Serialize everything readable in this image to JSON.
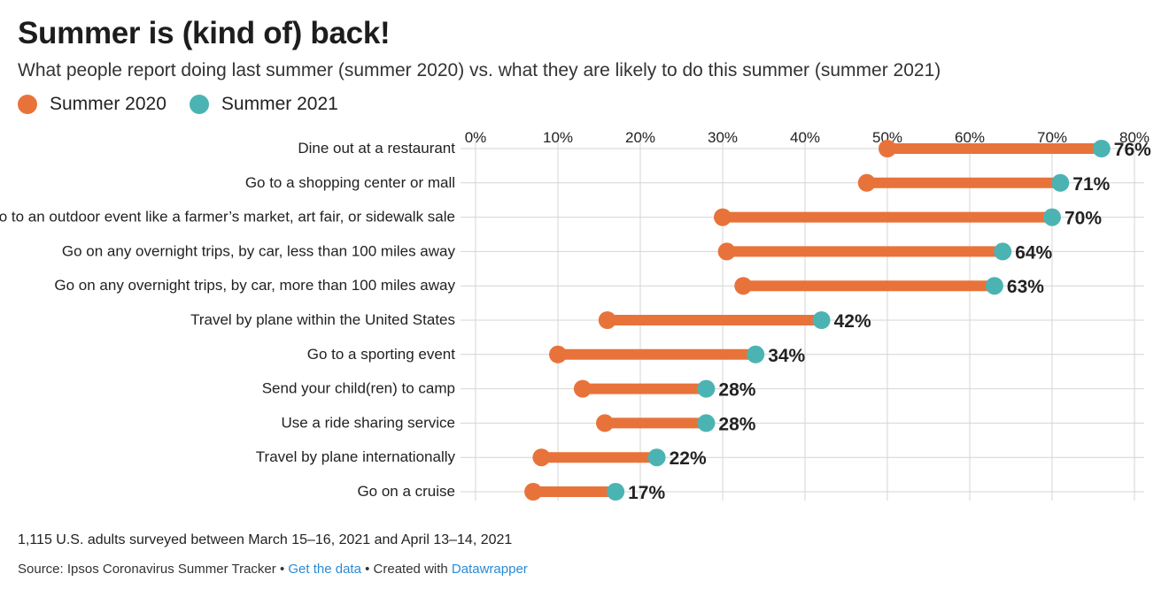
{
  "title": "Summer is (kind of) back!",
  "subtitle": "What people report doing last summer (summer 2020) vs. what they are likely to do this summer (summer 2021)",
  "legend": [
    {
      "label": "Summer 2020",
      "color": "#e8733a"
    },
    {
      "label": "Summer 2021",
      "color": "#4cb3b3"
    }
  ],
  "note": "1,115 U.S. adults surveyed between March 15–16, 2021 and April 13–14, 2021",
  "footer": {
    "source": "Source: Ipsos Coronavirus Summer Tracker",
    "sep1": " • ",
    "get_data": "Get the data",
    "sep2": " • ",
    "created_with": "Created with ",
    "datawrapper": "Datawrapper"
  },
  "chart_data": {
    "type": "dot-range",
    "xlim": [
      0,
      80
    ],
    "xticks": [
      0,
      10,
      20,
      30,
      40,
      50,
      60,
      70,
      80
    ],
    "tick_suffix": "%",
    "series": [
      {
        "name": "Summer 2020",
        "color": "#e8733a"
      },
      {
        "name": "Summer 2021",
        "color": "#4cb3b3"
      }
    ],
    "categories": [
      "Dine out at a restaurant",
      "Go to a shopping center or mall",
      "Go to an outdoor event like a farmer’s market, art fair, or sidewalk sale",
      "Go on any overnight trips, by car, less than 100 miles away",
      "Go on any overnight trips, by car, more than 100 miles away",
      "Travel by plane within the United States",
      "Go to a sporting event",
      "Send your child(ren) to camp",
      "Use a ride sharing service",
      "Travel by plane internationally",
      "Go on a cruise"
    ],
    "summer_2020": [
      50,
      47.5,
      30,
      30.5,
      32.5,
      16,
      10,
      13,
      15.7,
      8,
      7
    ],
    "summer_2021": [
      76,
      71,
      70,
      64,
      63,
      42,
      34,
      28,
      28,
      22,
      17
    ],
    "value_labels": [
      "76%",
      "71%",
      "70%",
      "64%",
      "63%",
      "42%",
      "34%",
      "28%",
      "28%",
      "22%",
      "17%"
    ]
  }
}
